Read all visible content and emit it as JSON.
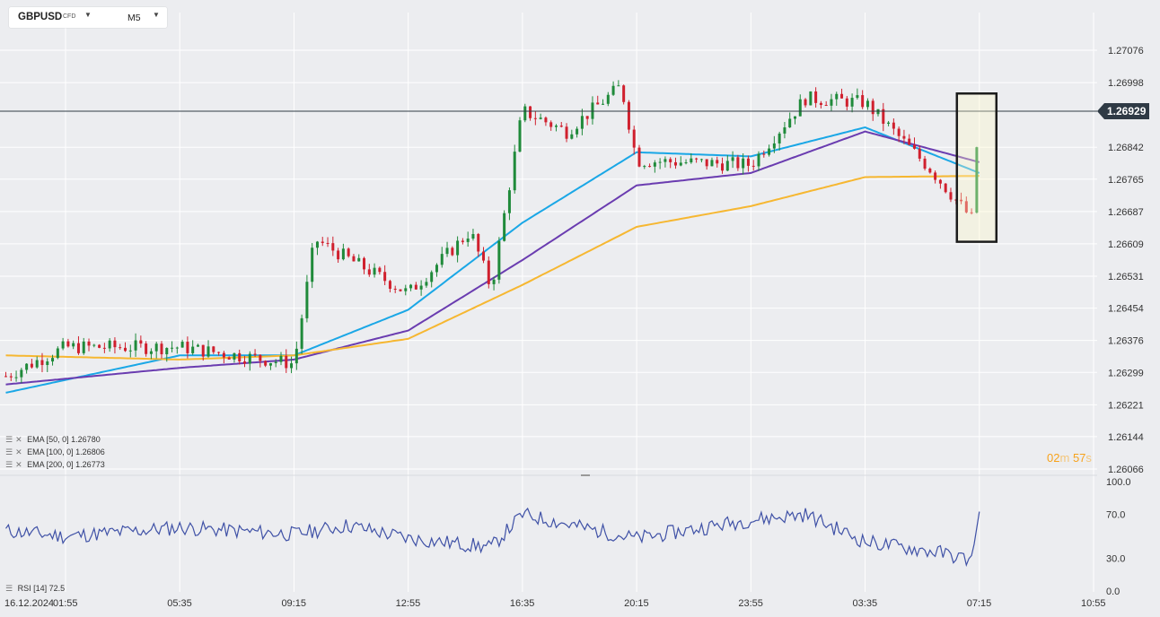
{
  "header": {
    "symbol": "GBPUSD",
    "instrument_type": "CFD",
    "timeframe": "M5",
    "dropdown_icon": "caret-down-icon"
  },
  "countdown": {
    "minutes": "02",
    "minutes_unit": "m",
    "seconds": "57",
    "seconds_unit": "s"
  },
  "indicators": [
    {
      "label": "EMA [50, 0] 1.26780",
      "color": "#1aa7e6",
      "icons": [
        "settings-icon",
        "close-icon"
      ]
    },
    {
      "label": "EMA [100, 0] 1.26806",
      "color": "#6a3cb0",
      "icons": [
        "settings-icon",
        "close-icon"
      ]
    },
    {
      "label": "EMA [200, 0] 1.26773",
      "color": "#f6b731",
      "icons": [
        "settings-icon",
        "close-icon"
      ]
    }
  ],
  "rsi": {
    "label": "RSI [14] 72.5",
    "color": "#3f51a6",
    "icons": [
      "settings-icon",
      "close-icon"
    ]
  },
  "chart_data": {
    "type": "candlestick",
    "symbol": "GBPUSD",
    "timeframe": "M5",
    "current_price": 1.26929,
    "current_price_label": "1.26929",
    "y_ticks": [
      "1.27076",
      "1.26998",
      "1.26842",
      "1.26765",
      "1.26687",
      "1.26609",
      "1.26531",
      "1.26454",
      "1.26376",
      "1.26299",
      "1.26221",
      "1.26144",
      "1.26066"
    ],
    "ylim": [
      1.26066,
      1.27076
    ],
    "x_ticks": [
      "16.12.2024",
      "01:55",
      "05:35",
      "09:15",
      "12:55",
      "16:35",
      "20:15",
      "23:55",
      "03:35",
      "07:15",
      "10:55"
    ],
    "up_color": "#1f8a3a",
    "down_color": "#d0202e",
    "key_points": [
      {
        "time": "16.12.2024",
        "price": 1.2629
      },
      {
        "time": "01:55",
        "price": 1.2636
      },
      {
        "time": "05:35",
        "price": 1.2636
      },
      {
        "time": "09:15",
        "price": 1.2632
      },
      {
        "time": "09:55",
        "price": 1.2662
      },
      {
        "time": "12:55",
        "price": 1.2649
      },
      {
        "time": "14:55",
        "price": 1.2664
      },
      {
        "time": "15:35",
        "price": 1.265
      },
      {
        "time": "16:35",
        "price": 1.2693
      },
      {
        "time": "18:00",
        "price": 1.2688
      },
      {
        "time": "19:45",
        "price": 1.2699
      },
      {
        "time": "20:15",
        "price": 1.2681
      },
      {
        "time": "23:55",
        "price": 1.268
      },
      {
        "time": "01:40",
        "price": 1.2696
      },
      {
        "time": "03:35",
        "price": 1.2695
      },
      {
        "time": "05:40",
        "price": 1.2679
      },
      {
        "time": "07:00",
        "price": 1.2667
      },
      {
        "time": "07:15",
        "price": 1.26929
      }
    ],
    "ema_series": [
      {
        "name": "EMA [50, 0]",
        "color": "#1aa7e6",
        "last": 1.2678,
        "points": [
          [
            "16.12.2024",
            1.2625
          ],
          [
            "05:35",
            1.2634
          ],
          [
            "09:15",
            1.2634
          ],
          [
            "12:55",
            1.2645
          ],
          [
            "16:35",
            1.2666
          ],
          [
            "20:15",
            1.2683
          ],
          [
            "23:55",
            1.2682
          ],
          [
            "03:35",
            1.2689
          ],
          [
            "07:15",
            1.2678
          ]
        ]
      },
      {
        "name": "EMA [100, 0]",
        "color": "#6a3cb0",
        "last": 1.26806,
        "points": [
          [
            "16.12.2024",
            1.2627
          ],
          [
            "05:35",
            1.2631
          ],
          [
            "09:15",
            1.2633
          ],
          [
            "12:55",
            1.264
          ],
          [
            "16:35",
            1.2657
          ],
          [
            "20:15",
            1.2675
          ],
          [
            "23:55",
            1.2678
          ],
          [
            "03:35",
            1.2688
          ],
          [
            "07:15",
            1.26806
          ]
        ]
      },
      {
        "name": "EMA [200, 0]",
        "color": "#f6b731",
        "last": 1.26773,
        "points": [
          [
            "16.12.2024",
            1.2634
          ],
          [
            "05:35",
            1.2633
          ],
          [
            "09:15",
            1.2634
          ],
          [
            "12:55",
            1.2638
          ],
          [
            "16:35",
            1.2651
          ],
          [
            "20:15",
            1.2665
          ],
          [
            "23:55",
            1.267
          ],
          [
            "03:35",
            1.2677
          ],
          [
            "07:15",
            1.26773
          ]
        ]
      }
    ],
    "rsi_panel": {
      "name": "RSI [14]",
      "last": 72.5,
      "y_ticks": [
        "100.0",
        "70.0",
        "30.0",
        "0.0"
      ],
      "ylim": [
        0,
        100
      ],
      "points": [
        [
          "16.12.2024",
          55
        ],
        [
          "01:55",
          50
        ],
        [
          "05:35",
          58
        ],
        [
          "09:15",
          52
        ],
        [
          "11:00",
          60
        ],
        [
          "12:55",
          48
        ],
        [
          "15:35",
          40
        ],
        [
          "16:35",
          70
        ],
        [
          "19:00",
          55
        ],
        [
          "20:15",
          48
        ],
        [
          "23:55",
          65
        ],
        [
          "01:40",
          70
        ],
        [
          "03:35",
          45
        ],
        [
          "06:00",
          35
        ],
        [
          "07:00",
          28
        ],
        [
          "07:15",
          72.5
        ]
      ]
    },
    "highlight_box": {
      "from": "07:15",
      "to": "07:15",
      "price_range": [
        1.2664,
        1.2695
      ]
    }
  }
}
